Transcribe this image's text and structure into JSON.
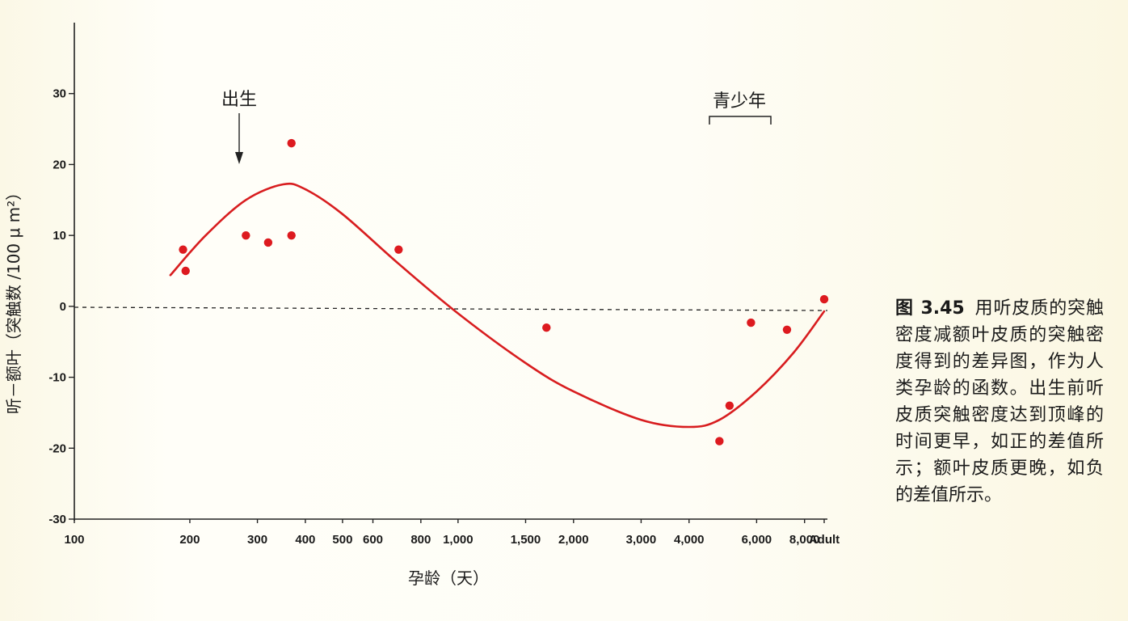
{
  "chart_data": {
    "type": "scatter",
    "title": "",
    "xlabel": "孕龄（天）",
    "ylabel": "听－额叶（突触数 /100 μ m²）",
    "x_scale": "log",
    "xlim": [
      100,
      9000
    ],
    "ylim": [
      -30,
      40
    ],
    "grid": false,
    "x_ticks": [
      {
        "value": 100,
        "label": "100"
      },
      {
        "value": 200,
        "label": "200"
      },
      {
        "value": 300,
        "label": "300"
      },
      {
        "value": 400,
        "label": "400"
      },
      {
        "value": 500,
        "label": "500"
      },
      {
        "value": 600,
        "label": "600"
      },
      {
        "value": 800,
        "label": "800"
      },
      {
        "value": 1000,
        "label": "1,000"
      },
      {
        "value": 1500,
        "label": "1,500"
      },
      {
        "value": 2000,
        "label": "2,000"
      },
      {
        "value": 3000,
        "label": "3,000"
      },
      {
        "value": 4000,
        "label": "4,000"
      },
      {
        "value": 6000,
        "label": "6,000"
      },
      {
        "value": 8000,
        "label": "8,000"
      },
      {
        "value": 9000,
        "label": "Adult"
      }
    ],
    "y_ticks": [
      {
        "value": 30,
        "label": "30"
      },
      {
        "value": 20,
        "label": "20"
      },
      {
        "value": 10,
        "label": "10"
      },
      {
        "value": 0,
        "label": "0"
      },
      {
        "value": -10,
        "label": "-10"
      },
      {
        "value": -20,
        "label": "-20"
      },
      {
        "value": -30,
        "label": "-30"
      }
    ],
    "points": [
      {
        "x": 192,
        "y": 8
      },
      {
        "x": 195,
        "y": 5
      },
      {
        "x": 280,
        "y": 10
      },
      {
        "x": 320,
        "y": 9
      },
      {
        "x": 368,
        "y": 23
      },
      {
        "x": 368,
        "y": 10
      },
      {
        "x": 700,
        "y": 8
      },
      {
        "x": 1700,
        "y": -3
      },
      {
        "x": 4800,
        "y": -19
      },
      {
        "x": 5100,
        "y": -14
      },
      {
        "x": 5800,
        "y": -2.3
      },
      {
        "x": 7200,
        "y": -3.3
      },
      {
        "x": 9000,
        "y": 1
      }
    ],
    "fit_curve": [
      {
        "x": 178,
        "y": 4.4
      },
      {
        "x": 220,
        "y": 10
      },
      {
        "x": 280,
        "y": 15
      },
      {
        "x": 350,
        "y": 17.2
      },
      {
        "x": 400,
        "y": 16.5
      },
      {
        "x": 500,
        "y": 13
      },
      {
        "x": 700,
        "y": 6
      },
      {
        "x": 1000,
        "y": -1
      },
      {
        "x": 1500,
        "y": -8
      },
      {
        "x": 2000,
        "y": -12
      },
      {
        "x": 3000,
        "y": -16
      },
      {
        "x": 4000,
        "y": -17
      },
      {
        "x": 4800,
        "y": -16
      },
      {
        "x": 6000,
        "y": -12
      },
      {
        "x": 7500,
        "y": -6.5
      },
      {
        "x": 9000,
        "y": -0.7
      }
    ],
    "reference_line": {
      "y": 0,
      "style": "dashed"
    },
    "annotations": {
      "birth": {
        "label": "出生",
        "x": 283,
        "y": 20
      },
      "adolescence": {
        "label": "青少年",
        "x_start": 4800,
        "x_end": 7200
      }
    },
    "colors": {
      "points": "#dd1a1f",
      "curve": "#d81d1f",
      "axis": "#222222"
    }
  },
  "caption": {
    "label": "图 3.45",
    "text": "用听皮质的突触密度减额叶皮质的突触密度得到的差异图，作为人类孕龄的函数。出生前听皮质突触密度达到顶峰的时间更早，如正的差值所示；额叶皮质更晚，如负的差值所示。"
  }
}
